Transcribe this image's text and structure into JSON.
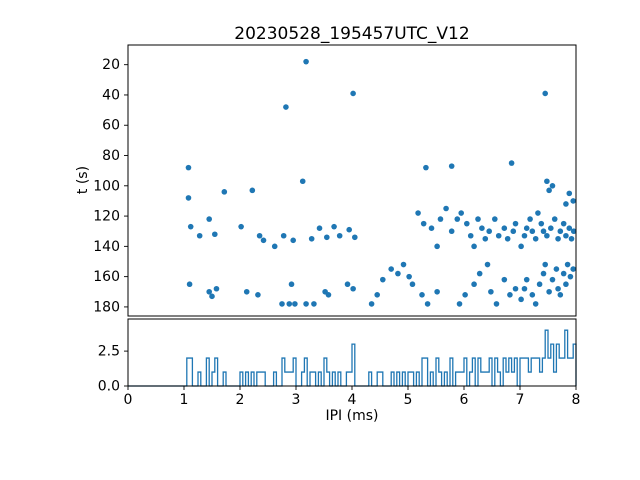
{
  "figure": {
    "title": "20230528_195457UTC_V12",
    "background_color": "#ffffff",
    "accent_color": "#1f77b4"
  },
  "chart_data": [
    {
      "type": "scatter",
      "title": "20230528_195457UTC_V12",
      "ylabel": "t (s)",
      "xlim": [
        0,
        8
      ],
      "ylim": [
        186,
        7
      ],
      "y_inverted": true,
      "yticks": [
        20,
        40,
        60,
        80,
        100,
        120,
        140,
        160,
        180
      ],
      "marker_color": "#1f77b4",
      "grid": false,
      "points": [
        [
          1.08,
          88
        ],
        [
          1.08,
          108
        ],
        [
          1.1,
          165
        ],
        [
          1.12,
          127
        ],
        [
          1.28,
          133
        ],
        [
          1.45,
          122
        ],
        [
          1.45,
          170
        ],
        [
          1.5,
          173
        ],
        [
          1.55,
          132
        ],
        [
          1.58,
          168
        ],
        [
          1.72,
          104
        ],
        [
          2.02,
          127
        ],
        [
          2.12,
          170
        ],
        [
          2.22,
          103
        ],
        [
          2.32,
          172
        ],
        [
          2.35,
          133
        ],
        [
          2.42,
          136
        ],
        [
          2.62,
          140
        ],
        [
          2.75,
          178
        ],
        [
          2.78,
          133
        ],
        [
          2.82,
          48
        ],
        [
          2.88,
          178
        ],
        [
          2.92,
          165
        ],
        [
          2.95,
          136
        ],
        [
          2.98,
          178
        ],
        [
          3.12,
          97
        ],
        [
          3.18,
          18
        ],
        [
          3.18,
          178
        ],
        [
          3.28,
          135
        ],
        [
          3.32,
          178
        ],
        [
          3.42,
          128
        ],
        [
          3.52,
          170
        ],
        [
          3.55,
          134
        ],
        [
          3.58,
          172
        ],
        [
          3.68,
          127
        ],
        [
          3.78,
          133
        ],
        [
          3.92,
          165
        ],
        [
          3.95,
          129
        ],
        [
          4.02,
          39
        ],
        [
          4.02,
          168
        ],
        [
          4.05,
          134
        ],
        [
          4.35,
          178
        ],
        [
          4.45,
          172
        ],
        [
          4.55,
          162
        ],
        [
          4.7,
          155
        ],
        [
          4.82,
          158
        ],
        [
          4.92,
          152
        ],
        [
          5.02,
          160
        ],
        [
          5.08,
          165
        ],
        [
          5.18,
          118
        ],
        [
          5.25,
          172
        ],
        [
          5.28,
          125
        ],
        [
          5.32,
          88
        ],
        [
          5.35,
          178
        ],
        [
          5.42,
          128
        ],
        [
          5.52,
          140
        ],
        [
          5.52,
          170
        ],
        [
          5.58,
          122
        ],
        [
          5.68,
          115
        ],
        [
          5.78,
          87
        ],
        [
          5.78,
          130
        ],
        [
          5.88,
          122
        ],
        [
          5.92,
          178
        ],
        [
          5.95,
          118
        ],
        [
          6.02,
          172
        ],
        [
          6.05,
          125
        ],
        [
          6.12,
          133
        ],
        [
          6.18,
          140
        ],
        [
          6.18,
          165
        ],
        [
          6.25,
          122
        ],
        [
          6.28,
          158
        ],
        [
          6.32,
          128
        ],
        [
          6.38,
          135
        ],
        [
          6.42,
          152
        ],
        [
          6.45,
          130
        ],
        [
          6.48,
          170
        ],
        [
          6.55,
          122
        ],
        [
          6.58,
          178
        ],
        [
          6.62,
          133
        ],
        [
          6.72,
          128
        ],
        [
          6.72,
          162
        ],
        [
          6.78,
          135
        ],
        [
          6.82,
          172
        ],
        [
          6.85,
          85
        ],
        [
          6.88,
          130
        ],
        [
          6.92,
          125
        ],
        [
          6.92,
          168
        ],
        [
          7.02,
          140
        ],
        [
          7.02,
          175
        ],
        [
          7.08,
          133
        ],
        [
          7.08,
          168
        ],
        [
          7.12,
          128
        ],
        [
          7.12,
          162
        ],
        [
          7.18,
          122
        ],
        [
          7.22,
          130
        ],
        [
          7.22,
          172
        ],
        [
          7.28,
          135
        ],
        [
          7.28,
          178
        ],
        [
          7.32,
          118
        ],
        [
          7.35,
          165
        ],
        [
          7.38,
          125
        ],
        [
          7.42,
          130
        ],
        [
          7.42,
          158
        ],
        [
          7.45,
          39
        ],
        [
          7.45,
          152
        ],
        [
          7.48,
          97
        ],
        [
          7.48,
          133
        ],
        [
          7.52,
          103
        ],
        [
          7.52,
          170
        ],
        [
          7.55,
          128
        ],
        [
          7.58,
          100
        ],
        [
          7.58,
          162
        ],
        [
          7.62,
          122
        ],
        [
          7.65,
          155
        ],
        [
          7.68,
          135
        ],
        [
          7.68,
          168
        ],
        [
          7.72,
          130
        ],
        [
          7.72,
          172
        ],
        [
          7.78,
          125
        ],
        [
          7.78,
          158
        ],
        [
          7.82,
          112
        ],
        [
          7.82,
          133
        ],
        [
          7.82,
          165
        ],
        [
          7.85,
          152
        ],
        [
          7.88,
          105
        ],
        [
          7.88,
          128
        ],
        [
          7.9,
          160
        ],
        [
          7.92,
          135
        ],
        [
          7.95,
          110
        ],
        [
          7.95,
          155
        ],
        [
          7.96,
          130
        ]
      ]
    },
    {
      "type": "histogram",
      "xlabel": "IPI (ms)",
      "xlim": [
        0,
        8
      ],
      "ylim": [
        0,
        4.8
      ],
      "xticks": [
        0,
        1,
        2,
        3,
        4,
        5,
        6,
        7,
        8
      ],
      "yticks": [
        0,
        2.5
      ],
      "ytick_labels": [
        "0.0",
        "2.5"
      ],
      "bin_width": 0.05,
      "derived_from_scatter_x": true,
      "line_color": "#1f77b4",
      "grid": false
    }
  ]
}
